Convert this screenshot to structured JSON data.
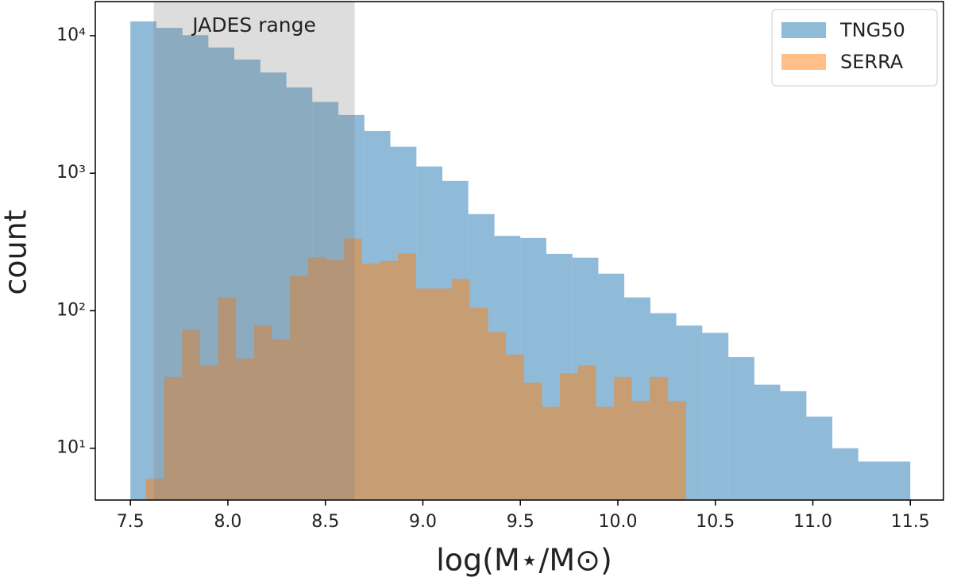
{
  "chart_data": {
    "type": "histogram",
    "xlabel": "log(M⋆/M⊙)",
    "ylabel": "count",
    "xlim": [
      7.32,
      11.67
    ],
    "ylim": [
      4.2,
      17700
    ],
    "log_y": true,
    "xticks": [
      7.5,
      {
        "value": 8,
        "label": "8.0"
      },
      8.5,
      {
        "value": 9,
        "label": "9.0"
      },
      9.5,
      {
        "value": 10,
        "label": "10.0"
      },
      10.5,
      {
        "value": 11,
        "label": "11.0"
      },
      11.5
    ],
    "yticks": [
      {
        "value": 10,
        "label": "10¹"
      },
      {
        "value": 100,
        "label": "10²"
      },
      {
        "value": 1000,
        "label": "10³"
      },
      {
        "value": 10000,
        "label": "10⁴"
      }
    ],
    "legend": "upper right",
    "span": {
      "label": "JADES range",
      "range": [
        7.62,
        8.65
      ],
      "color": "#808080"
    },
    "series": [
      {
        "name": "TNG50",
        "color": "#1f77b4",
        "bins": [
          7.5,
          7.633,
          7.767,
          7.9,
          8.033,
          8.167,
          8.3,
          8.433,
          8.567,
          8.7,
          8.833,
          8.967,
          9.1,
          9.233,
          9.367,
          9.5,
          9.633,
          9.767,
          9.9,
          10.033,
          10.167,
          10.3,
          10.433,
          10.567,
          10.7,
          10.833,
          10.967,
          11.1,
          11.233,
          11.367,
          11.5
        ],
        "values": [
          12700,
          11400,
          10100,
          8200,
          6700,
          5400,
          4200,
          3300,
          2650,
          2030,
          1560,
          1120,
          880,
          504,
          350,
          338,
          259,
          243,
          186,
          125,
          96,
          78,
          69,
          46,
          29,
          26,
          17,
          10,
          8,
          8
        ]
      },
      {
        "name": "SERRA",
        "color": "#ff7f0e",
        "bins": [
          7.58,
          7.672,
          7.765,
          7.857,
          7.949,
          8.042,
          8.134,
          8.226,
          8.318,
          8.411,
          8.503,
          8.595,
          8.688,
          8.78,
          8.872,
          8.965,
          9.057,
          9.149,
          9.241,
          9.334,
          9.426,
          9.518,
          9.611,
          9.703,
          9.795,
          9.888,
          9.98,
          10.072,
          10.164,
          10.257,
          10.35
        ],
        "values": [
          6,
          33,
          73,
          40,
          125,
          45,
          78,
          62,
          180,
          245,
          235,
          335,
          220,
          230,
          260,
          145,
          145,
          170,
          105,
          70,
          48,
          30,
          20,
          35,
          40,
          20,
          33,
          22,
          33,
          22
        ]
      }
    ]
  }
}
